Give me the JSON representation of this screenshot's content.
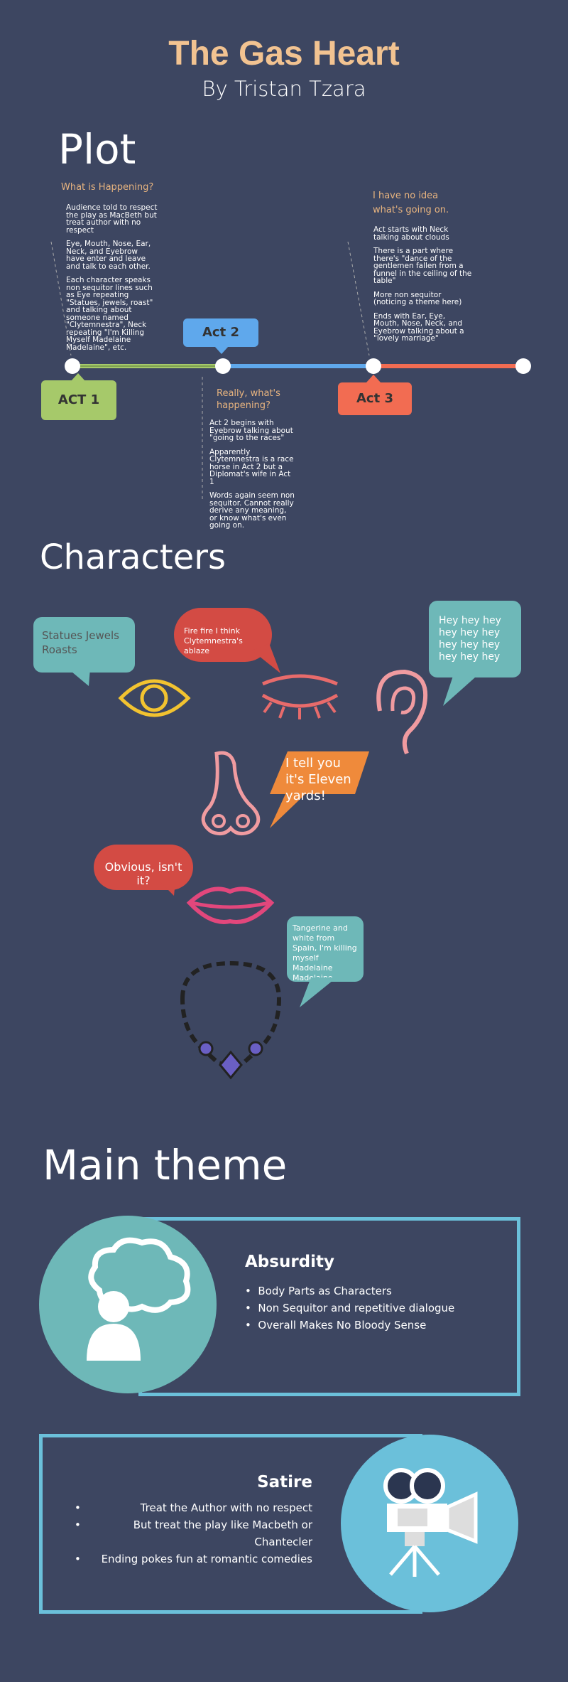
{
  "header": {
    "title": "The Gas Heart",
    "subtitle": "By Tristan Tzara"
  },
  "plot": {
    "heading": "Plot",
    "acts": [
      "ACT 1",
      "Act 2",
      "Act 3"
    ],
    "act1": {
      "question": "What is Happening?",
      "notes": [
        "Audience told to respect the play as MacBeth but treat author with no respect",
        "Eye, Mouth, Nose, Ear, Neck, and Eyebrow have enter and leave and talk to each other.",
        "Each character speaks non sequitor lines such as Eye repeating \"Statues, jewels, roast\" and talking about someone named \"Clytemnestra\", Neck repeating \"I'm Killing Myself Madelaine Madelaine\", etc."
      ]
    },
    "act2": {
      "question": "Really, what's happening?",
      "notes": [
        "Act 2 begins with Eyebrow talking about \"going to the races\"",
        "Apparently Clytemnestra is a race horse in Act 2 but a Diplomat's wife in Act 1",
        "Words again seem non sequitor. Cannot really derive any meaning, or know what's even going on."
      ]
    },
    "act3": {
      "question": "I have no idea what's going on.",
      "notes": [
        "Act starts with Neck talking about clouds",
        "There is a part where there's \"dance of the gentlemen fallen from a funnel in the ceiling of the table\"",
        "More non sequitor (noticing a theme here)",
        "Ends with Ear, Eye, Mouth, Nose, Neck, and Eyebrow talking about a \"lovely marriage\""
      ]
    }
  },
  "characters": {
    "heading": "Characters",
    "eye_quote": "Statues Jewels Roasts",
    "eyebrow_quote": "Fire fire I think Clytemnestra's ablaze",
    "ear_quote": "Hey hey hey hey hey hey hey hey hey hey hey hey",
    "nose_quote": "I tell you it's Eleven yards!",
    "mouth_quote": "Obvious, isn't it?",
    "neck_quote": "Tangerine and white from Spain, I'm killing myself Madelaine Madelaine"
  },
  "theme": {
    "heading": "Main theme",
    "absurdity": {
      "title": "Absurdity",
      "items": [
        "Body Parts as Characters",
        "Non Sequitor and repetitive dialogue",
        "Overall Makes No Bloody Sense"
      ]
    },
    "satire": {
      "title": "Satire",
      "items": [
        "Treat the Author with no respect",
        "But treat the play like Macbeth or Chantecler",
        "Ending pokes fun at romantic comedies"
      ]
    }
  },
  "colors": {
    "background": "#3d4661",
    "title": "#f2c391",
    "act1": "#a6c96a",
    "act2": "#5fa8ec",
    "act3": "#f26c52",
    "teal": "#6eb8b8",
    "red": "#d34b44",
    "orange": "#ef8a3b",
    "pink": "#e2477c",
    "light_blue": "#6bc0da"
  }
}
